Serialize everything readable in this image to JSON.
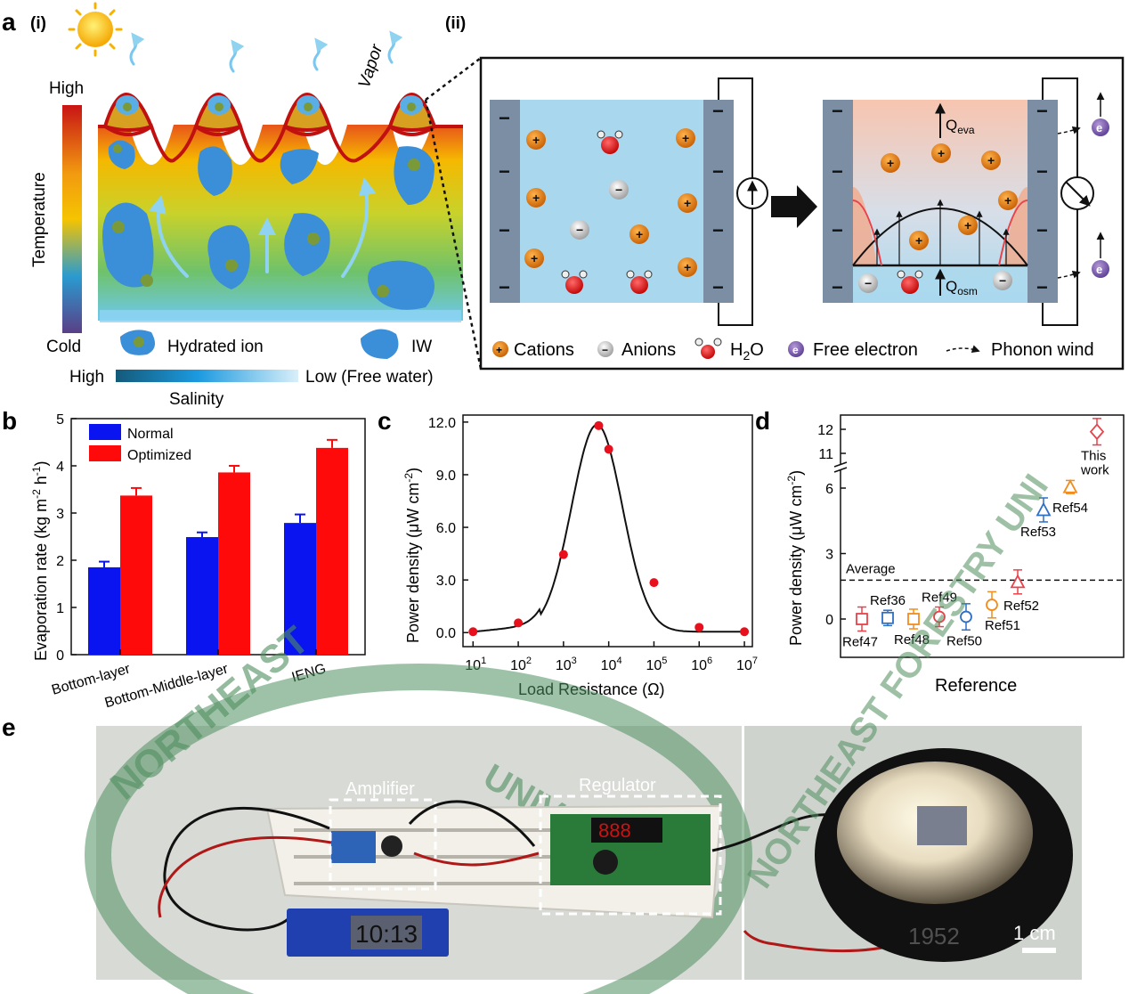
{
  "panel_labels": {
    "a": "a",
    "a_i": "(i)",
    "a_ii": "(ii)",
    "b": "b",
    "c": "c",
    "d": "d",
    "e": "e"
  },
  "panel_a_i": {
    "vapor": "Vapor",
    "temp_high": "High",
    "temp_axis": "Temperature",
    "temp_cold": "Cold",
    "hydrated_ion": "Hydrated ion",
    "iw": "IW",
    "salinity_high": "High",
    "salinity_low": "Low (Free water)",
    "salinity_axis": "Salinity",
    "colors": {
      "hot": "#c81414",
      "mid": "#f5c400",
      "cool": "#2a9bd0",
      "cold": "#5a3f86"
    }
  },
  "panel_a_ii": {
    "q_eva": "Q",
    "q_eva_sub": "eva",
    "q_osm": "Q",
    "q_osm_sub": "osm",
    "electron": "e",
    "minus": "−",
    "plus": "+",
    "legend": {
      "cations": "Cations",
      "anions": "Anions",
      "h2o_main": "H",
      "h2o_sub": "2",
      "h2o_end": "O",
      "free_electron": "Free electron",
      "phonon_wind": "Phonon wind"
    }
  },
  "chart_data": [
    {
      "panel": "b",
      "type": "bar",
      "categories": [
        "Bottom-layer",
        "Bottom-Middle-layer",
        "IENG"
      ],
      "series": [
        {
          "name": "Normal",
          "color": "#0a14f0",
          "values": [
            1.85,
            2.49,
            2.79
          ],
          "errors": [
            0.12,
            0.1,
            0.18
          ]
        },
        {
          "name": "Optimized",
          "color": "#ff0a0a",
          "values": [
            3.37,
            3.86,
            4.38
          ],
          "errors": [
            0.16,
            0.14,
            0.17
          ]
        }
      ],
      "ylabel_main": "Evaporation rate (kg m",
      "ylabel_sup1": "-2",
      "ylabel_mid": " h",
      "ylabel_sup2": "-1",
      "ylabel_end": ")",
      "ylim": [
        0,
        5
      ],
      "yticks": [
        "0",
        "1",
        "2",
        "3",
        "4",
        "5"
      ]
    },
    {
      "panel": "c",
      "type": "scatter",
      "x": [
        10,
        100,
        1000,
        6000,
        10000,
        100000,
        1000000,
        10000000
      ],
      "y": [
        0.05,
        0.55,
        4.45,
        11.8,
        10.45,
        2.85,
        0.3,
        0.05
      ],
      "fit_curve": true,
      "xscale": "log",
      "xlim": [
        6,
        15000000
      ],
      "xticks": [
        {
          "base": "10",
          "exp": "1",
          "value": 10
        },
        {
          "base": "10",
          "exp": "2",
          "value": 100
        },
        {
          "base": "10",
          "exp": "3",
          "value": 1000
        },
        {
          "base": "10",
          "exp": "4",
          "value": 10000
        },
        {
          "base": "10",
          "exp": "5",
          "value": 100000
        },
        {
          "base": "10",
          "exp": "6",
          "value": 1000000
        },
        {
          "base": "10",
          "exp": "7",
          "value": 10000000
        }
      ],
      "ylim": [
        -0.8,
        12.4
      ],
      "yticks": [
        {
          "label": "0.0",
          "value": 0
        },
        {
          "label": "3.0",
          "value": 3
        },
        {
          "label": "6.0",
          "value": 6
        },
        {
          "label": "9.0",
          "value": 9
        },
        {
          "label": "12.0",
          "value": 12
        }
      ],
      "xlabel": "Load Resistance (Ω)",
      "ylabel_main": "Power density (μW cm",
      "ylabel_sup": "-2",
      "ylabel_end": ")",
      "point_color": "#e8101c"
    },
    {
      "panel": "d",
      "type": "scatter",
      "points": [
        {
          "label": "Ref47",
          "y": 0.0,
          "err": 0.55,
          "marker": "square",
          "color": "#e8424a",
          "label_pos": "below"
        },
        {
          "label": "Ref36",
          "y": 0.05,
          "err": 0.35,
          "marker": "square",
          "color": "#2d6fc4",
          "label_pos": "above"
        },
        {
          "label": "Ref48",
          "y": 0.0,
          "err": 0.45,
          "marker": "square",
          "color": "#f28c1c",
          "label_pos": "below"
        },
        {
          "label": "Ref49",
          "y": 0.1,
          "err": 0.45,
          "marker": "circle",
          "color": "#e8424a",
          "label_pos": "above"
        },
        {
          "label": "Ref50",
          "y": 0.1,
          "err": 0.6,
          "marker": "circle",
          "color": "#2d6fc4",
          "label_pos": "below"
        },
        {
          "label": "Ref51",
          "y": 0.65,
          "err": 0.6,
          "marker": "circle",
          "color": "#f28c1c",
          "label_pos": "right"
        },
        {
          "label": "Ref52",
          "y": 1.7,
          "err": 0.55,
          "marker": "triangle",
          "color": "#e8424a",
          "label_pos": "below"
        },
        {
          "label": "Ref53",
          "y": 5.0,
          "err": 0.55,
          "marker": "triangle",
          "color": "#2d6fc4",
          "label_pos": "below"
        },
        {
          "label": "Ref54",
          "y": 6.05,
          "err": 0.3,
          "marker": "triangle",
          "color": "#f28c1c",
          "label_pos": "below"
        },
        {
          "label": "This work",
          "y": 11.9,
          "err": 0.55,
          "marker": "diamond",
          "color": "#e8424a",
          "label_pos": "below"
        }
      ],
      "average": 1.78,
      "average_label": "Average",
      "yscale": "broken",
      "yticks": [
        "0",
        "3",
        "6",
        "11",
        "12"
      ],
      "xlabel": "Reference",
      "ylabel_main": "Power density (μW cm",
      "ylabel_sup": "-2",
      "ylabel_end": ")",
      "this_work_line1": "This",
      "this_work_line2": "work"
    }
  ],
  "panel_e": {
    "amplifier": "Amplifier",
    "regulator": "Regulator",
    "clock": "10:13",
    "scale_bar": "1 cm",
    "logo_text_left": "NORTHEAST",
    "logo_text_left2": "UNIVERS",
    "logo_text_right": "NORTHEAST FORESTRY UNI",
    "logo_year": "1952",
    "display_digits": "888"
  }
}
